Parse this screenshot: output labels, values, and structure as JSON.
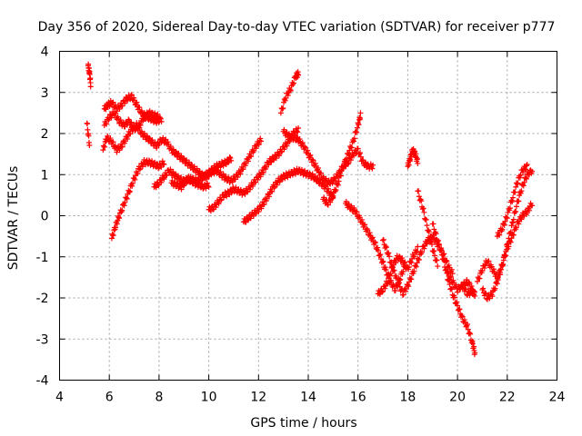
{
  "chart_data": {
    "type": "scatter",
    "title": "Day 356 of 2020, Sidereal Day-to-day VTEC variation (SDTVAR) for receiver p777",
    "xlabel": "GPS time / hours",
    "ylabel": "SDTVAR / TECUs",
    "xlim": [
      4,
      24
    ],
    "ylim": [
      -4,
      4
    ],
    "xticks": [
      4,
      6,
      8,
      10,
      12,
      14,
      16,
      18,
      20,
      22,
      24
    ],
    "yticks": [
      -4,
      -3,
      -2,
      -1,
      0,
      1,
      2,
      3,
      4
    ],
    "grid": true,
    "marker": "+",
    "color": "#ff0000",
    "series": [
      {
        "name": "SDTVAR",
        "tracks": [
          {
            "x": [
              5.15,
              5.2,
              5.25
            ],
            "y": [
              3.65,
              3.5,
              3.2
            ]
          },
          {
            "x": [
              5.1,
              5.2
            ],
            "y": [
              2.25,
              1.75
            ]
          },
          {
            "x": [
              5.75,
              5.9,
              6.1,
              6.3,
              6.5,
              6.7,
              6.9,
              7.1,
              7.3,
              7.5,
              7.7,
              7.9,
              8.1,
              8.3,
              8.5,
              8.7,
              8.9,
              9.1,
              9.3,
              9.5,
              9.7,
              9.9,
              10.1,
              10.3,
              10.5,
              10.7,
              10.9,
              11.1,
              11.3,
              11.5,
              11.7,
              11.9,
              12.1
            ],
            "y": [
              1.6,
              1.9,
              1.8,
              1.6,
              1.7,
              1.9,
              2.1,
              2.2,
              2.0,
              1.9,
              1.8,
              1.7,
              1.85,
              1.8,
              1.6,
              1.5,
              1.4,
              1.3,
              1.2,
              1.1,
              1.0,
              0.95,
              1.05,
              1.1,
              1.0,
              0.9,
              0.85,
              0.95,
              1.1,
              1.3,
              1.5,
              1.7,
              1.85
            ]
          },
          {
            "x": [
              5.8,
              5.95,
              6.1,
              6.3,
              6.5,
              6.7,
              6.9,
              7.1,
              7.3,
              7.5,
              7.7,
              7.9,
              8.1
            ],
            "y": [
              2.6,
              2.7,
              2.75,
              2.6,
              2.7,
              2.85,
              2.9,
              2.7,
              2.5,
              2.4,
              2.35,
              2.3,
              2.35
            ]
          },
          {
            "x": [
              5.8,
              6.0,
              6.2,
              6.4,
              6.6,
              6.8,
              7.0,
              7.2,
              7.4,
              7.6,
              7.8,
              8.0
            ],
            "y": [
              2.2,
              2.4,
              2.5,
              2.3,
              2.2,
              2.3,
              2.1,
              2.2,
              2.4,
              2.5,
              2.45,
              2.4
            ]
          },
          {
            "x": [
              6.1,
              6.25,
              6.4,
              6.6,
              6.8,
              7.0,
              7.2,
              7.4,
              7.6,
              7.8,
              8.0,
              8.2
            ],
            "y": [
              -0.55,
              -0.25,
              0.0,
              0.3,
              0.6,
              0.9,
              1.15,
              1.3,
              1.3,
              1.25,
              1.2,
              1.3
            ]
          },
          {
            "x": [
              7.8,
              8.0,
              8.2,
              8.4,
              8.6,
              8.8,
              9.0,
              9.2,
              9.4,
              9.6,
              9.8,
              10.0
            ],
            "y": [
              0.7,
              0.8,
              0.95,
              1.1,
              1.0,
              0.9,
              0.85,
              0.9,
              0.8,
              0.75,
              0.7,
              0.75
            ]
          },
          {
            "x": [
              8.5,
              8.7,
              8.9,
              9.1,
              9.3,
              9.5,
              9.7,
              9.9,
              10.1,
              10.3,
              10.5,
              10.7,
              10.9
            ],
            "y": [
              0.8,
              0.75,
              0.7,
              0.85,
              0.9,
              0.85,
              0.9,
              1.0,
              1.1,
              1.2,
              1.25,
              1.3,
              1.4
            ]
          },
          {
            "x": [
              10.0,
              10.2,
              10.4,
              10.6,
              10.8,
              11.0,
              11.2,
              11.4,
              11.6,
              11.8,
              12.0,
              12.2,
              12.4,
              12.6,
              12.8,
              13.0,
              13.2,
              13.4,
              13.6
            ],
            "y": [
              0.15,
              0.2,
              0.35,
              0.5,
              0.55,
              0.65,
              0.6,
              0.55,
              0.65,
              0.8,
              0.95,
              1.1,
              1.3,
              1.4,
              1.5,
              1.65,
              1.8,
              2.0,
              2.1
            ]
          },
          {
            "x": [
              11.4,
              11.6,
              11.8,
              12.0,
              12.2,
              12.4,
              12.6,
              12.8,
              13.0,
              13.2,
              13.4,
              13.6,
              13.8,
              14.0,
              14.2,
              14.4,
              14.6,
              14.8,
              15.0
            ],
            "y": [
              -0.15,
              -0.05,
              0.05,
              0.15,
              0.3,
              0.5,
              0.7,
              0.85,
              0.95,
              1.0,
              1.05,
              1.1,
              1.05,
              1.0,
              0.95,
              0.85,
              0.75,
              0.6,
              0.45
            ]
          },
          {
            "x": [
              13.0,
              13.2,
              13.4,
              13.6,
              13.8,
              14.0,
              14.2,
              14.4,
              14.6,
              14.8,
              15.0,
              15.2,
              15.4,
              15.6,
              15.8,
              16.0,
              16.2,
              16.4,
              16.6
            ],
            "y": [
              2.05,
              1.95,
              1.9,
              1.85,
              1.7,
              1.5,
              1.3,
              1.1,
              0.9,
              0.8,
              0.85,
              1.0,
              1.2,
              1.3,
              1.5,
              1.6,
              1.3,
              1.2,
              1.2
            ]
          },
          {
            "x": [
              12.9,
              13.1,
              13.3,
              13.5,
              13.6
            ],
            "y": [
              2.5,
              2.9,
              3.1,
              3.4,
              3.45
            ]
          },
          {
            "x": [
              14.6,
              14.8,
              15.0,
              15.2,
              15.4,
              15.6,
              15.8,
              16.0,
              16.1
            ],
            "y": [
              0.4,
              0.3,
              0.5,
              0.8,
              1.2,
              1.5,
              1.8,
              2.2,
              2.45
            ]
          },
          {
            "x": [
              15.5,
              15.7,
              15.9,
              16.1,
              16.3,
              16.5,
              16.7,
              16.9,
              17.1,
              17.3,
              17.5,
              17.7,
              17.9
            ],
            "y": [
              0.3,
              0.2,
              0.1,
              -0.1,
              -0.3,
              -0.5,
              -0.7,
              -1.0,
              -1.3,
              -1.6,
              -1.8,
              -1.5,
              -1.2
            ]
          },
          {
            "x": [
              16.8,
              17.0,
              17.2,
              17.4,
              17.6,
              17.8,
              18.0,
              18.2,
              18.4
            ],
            "y": [
              -1.9,
              -1.8,
              -1.6,
              -1.2,
              -1.0,
              -1.1,
              -1.3,
              -1.0,
              -0.8
            ]
          },
          {
            "x": [
              17.0,
              17.2,
              17.4,
              17.6,
              17.8,
              18.0,
              18.2,
              18.4,
              18.6,
              18.8,
              19.0,
              19.2,
              19.4,
              19.6,
              19.8
            ],
            "y": [
              -0.6,
              -0.9,
              -1.3,
              -1.6,
              -1.9,
              -1.7,
              -1.4,
              -1.1,
              -0.8,
              -0.6,
              -0.5,
              -0.7,
              -0.9,
              -1.2,
              -1.4
            ]
          },
          {
            "x": [
              18.0,
              18.1,
              18.2,
              18.3,
              18.4
            ],
            "y": [
              1.2,
              1.4,
              1.6,
              1.5,
              1.3
            ]
          },
          {
            "x": [
              18.4,
              18.6,
              18.8,
              19.0,
              19.2
            ],
            "y": [
              0.6,
              0.2,
              -0.3,
              -0.8,
              -1.2
            ]
          },
          {
            "x": [
              19.0,
              19.2,
              19.4,
              19.6,
              19.8,
              20.0,
              20.2,
              20.4,
              20.6,
              20.7
            ],
            "y": [
              -0.2,
              -0.6,
              -1.0,
              -1.5,
              -1.9,
              -2.2,
              -2.5,
              -2.7,
              -3.1,
              -3.35
            ]
          },
          {
            "x": [
              19.6,
              19.8,
              20.0,
              20.2,
              20.4,
              20.6
            ],
            "y": [
              -1.4,
              -1.6,
              -1.8,
              -1.7,
              -1.6,
              -1.8
            ]
          },
          {
            "x": [
              20.2,
              20.4,
              20.6,
              20.7
            ],
            "y": [
              -1.7,
              -1.9,
              -1.85,
              -1.9
            ]
          },
          {
            "x": [
              20.8,
              21.0,
              21.2,
              21.4,
              21.6,
              21.8,
              22.0,
              22.2,
              22.4,
              22.6,
              22.8,
              23.0
            ],
            "y": [
              -1.6,
              -1.3,
              -1.1,
              -1.3,
              -1.5,
              -1.2,
              -0.8,
              -0.5,
              -0.2,
              0.0,
              0.1,
              0.3
            ]
          },
          {
            "x": [
              21.0,
              21.2,
              21.4,
              21.6,
              21.8,
              22.0,
              22.2,
              22.4,
              22.6,
              22.8,
              23.0
            ],
            "y": [
              -1.8,
              -2.0,
              -1.9,
              -1.6,
              -1.2,
              -0.7,
              -0.2,
              0.3,
              0.7,
              1.0,
              1.1
            ]
          },
          {
            "x": [
              21.6,
              21.8,
              22.0,
              22.2,
              22.4,
              22.6,
              22.8
            ],
            "y": [
              -0.5,
              -0.3,
              0.0,
              0.4,
              0.8,
              1.1,
              1.2
            ]
          }
        ]
      }
    ]
  }
}
